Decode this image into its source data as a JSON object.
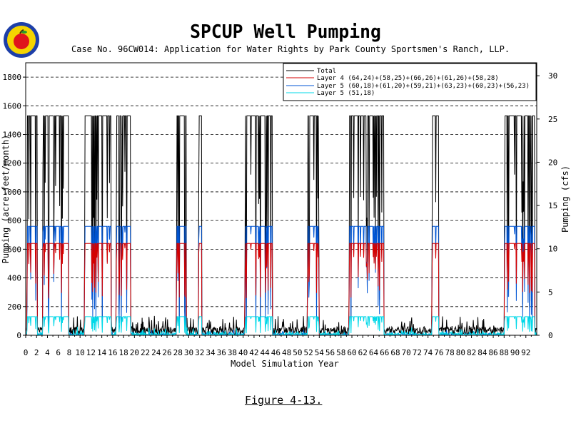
{
  "header": {
    "title": "SPCUP Well Pumping",
    "subtitle": "Case No. 96CW014: Application for Water Rights by Park County Sportsmen's Ranch, LLP.",
    "caption": "Figure 4-13."
  },
  "colors": {
    "total": "#000000",
    "layer4": "#d40000",
    "layer5a": "#0055d4",
    "layer5b": "#00d8e8",
    "grid": "#000000"
  },
  "chart_data": {
    "type": "line",
    "title": "SPCUP Well Pumping",
    "xlabel": "Model Simulation Year",
    "ylabel": "Pumping (acre-feet/month)",
    "y2label": "Pumping (cfs)",
    "xlim": [
      0,
      94
    ],
    "ylim": [
      0,
      1900
    ],
    "y2lim": [
      0,
      31.5
    ],
    "x_ticks": [
      0,
      2,
      4,
      6,
      8,
      10,
      12,
      14,
      16,
      18,
      20,
      22,
      24,
      26,
      28,
      30,
      32,
      34,
      36,
      38,
      40,
      42,
      44,
      46,
      48,
      50,
      52,
      54,
      56,
      58,
      60,
      62,
      64,
      66,
      68,
      70,
      72,
      74,
      76,
      78,
      80,
      82,
      84,
      86,
      88,
      90,
      92
    ],
    "y_ticks": [
      0,
      200,
      400,
      600,
      800,
      1000,
      1200,
      1400,
      1600,
      1800
    ],
    "y2_ticks": [
      0,
      5,
      10,
      15,
      20,
      25,
      30
    ],
    "grid": "horizontal dashed",
    "legend_position": "top-right",
    "legend": [
      {
        "label": "Total",
        "color": "#000000"
      },
      {
        "label": "Layer 4 (64,24)+(58,25)+(66,26)+(61,26)+(58,28)",
        "color": "#d40000"
      },
      {
        "label": "Layer 5 (60,18)+(61,20)+(59,21)+(63,23)+(60,23)+(56,23)",
        "color": "#0055d4"
      },
      {
        "label": "Layer 5 (51,18)",
        "color": "#00d8e8"
      }
    ],
    "pumping_levels": {
      "total": 1530,
      "layer4": 640,
      "layer5a": 760,
      "layer5b": 130
    },
    "series": [
      {
        "name": "Total",
        "pumping_periods": [
          [
            0.2,
            2.1
          ],
          [
            3.1,
            7.9
          ],
          [
            10.8,
            15.7
          ],
          [
            16.6,
            19.3
          ],
          [
            27.7,
            29.5
          ],
          [
            31.8,
            32.4
          ],
          [
            40.3,
            45.4
          ],
          [
            51.8,
            54.0
          ],
          [
            59.5,
            65.9
          ],
          [
            74.7,
            76.0
          ],
          [
            88.0,
            93.6
          ]
        ],
        "value_when_pumping": 1530
      },
      {
        "name": "Layer 4 (64,24)+(58,25)+(66,26)+(61,26)+(58,28)",
        "value_when_pumping": 640
      },
      {
        "name": "Layer 5 (60,18)+(61,20)+(59,21)+(63,23)+(60,23)+(56,23)",
        "value_when_pumping": 760
      },
      {
        "name": "Layer 5 (51,18)",
        "value_when_pumping": 130
      }
    ]
  }
}
